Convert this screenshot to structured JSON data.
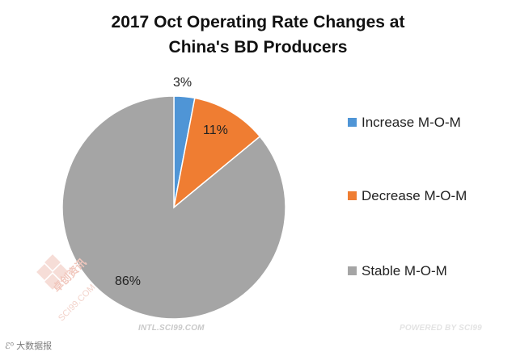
{
  "chart_data": {
    "type": "pie",
    "title_line1": "2017 Oct Operating Rate Changes at",
    "title_line2": "China's BD Producers",
    "slices": [
      {
        "name": "Increase M-O-M",
        "value": 3,
        "label": "3%",
        "color": "#4f95d6"
      },
      {
        "name": "Decrease M-O-M",
        "value": 11,
        "label": "11%",
        "color": "#ef7d32"
      },
      {
        "name": "Stable M-O-M",
        "value": 86,
        "label": "86%",
        "color": "#a5a5a5"
      }
    ],
    "start_angle": "12 o'clock",
    "direction": "clockwise",
    "legend_position": "right"
  },
  "footer": {
    "left_text": "INTL.SCI99.COM",
    "right_text": "POWERED BY SCI99"
  },
  "watermark": {
    "text": "卓创资讯",
    "sub_text": "SCI99.COM"
  },
  "brand": {
    "text": "大数据报"
  }
}
